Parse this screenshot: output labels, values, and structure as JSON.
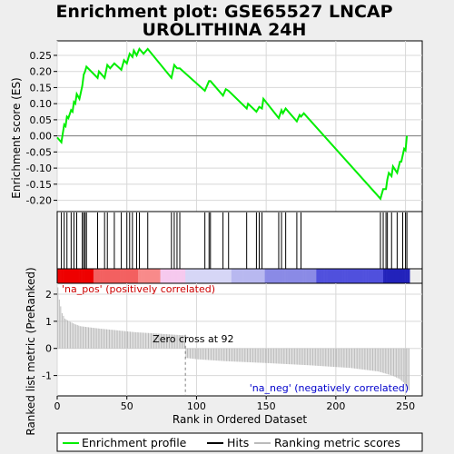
{
  "chart_data": {
    "type": "line",
    "title_lines": [
      "Enrichment plot: GSE65527 LNCAP",
      "UROLITHINA 24H"
    ],
    "ylabel_top": "Enrichment score (ES)",
    "ylabel_bottom": "Ranked list metric (PreRanked)",
    "xlabel": "Rank in Ordered Dataset",
    "es_ylim": [
      -0.235,
      0.295
    ],
    "es_yticks": [
      0.25,
      0.2,
      0.15,
      0.1,
      0.05,
      0.0,
      -0.05,
      -0.1,
      -0.15,
      -0.2
    ],
    "metric_ylim": [
      -1.75,
      2.4
    ],
    "metric_yticks": [
      2,
      1,
      0,
      -1
    ],
    "xlim": [
      0,
      262
    ],
    "xticks": [
      0,
      50,
      100,
      150,
      200,
      250
    ],
    "n_genes": 253,
    "zero_cross_rank": 92,
    "zero_cross_label": "Zero cross at 92",
    "pos_label": "'na_pos' (positively correlated)",
    "neg_label": "'na_neg' (negatively correlated)",
    "series": [
      {
        "name": "Enrichment profile",
        "color": "#00ee00",
        "x": [
          0,
          3,
          5,
          6,
          7,
          8,
          10,
          11,
          12,
          13,
          14,
          16,
          18,
          19,
          20,
          21,
          29,
          30,
          34,
          36,
          38,
          41,
          46,
          48,
          50,
          52,
          54,
          55,
          57,
          59,
          62,
          65,
          82,
          84,
          86,
          88,
          106,
          109,
          110,
          119,
          121,
          123,
          136,
          137,
          143,
          145,
          147,
          148,
          159,
          161,
          162,
          164,
          172,
          174,
          175,
          177,
          232,
          234,
          236,
          237,
          238,
          240,
          241,
          244,
          246,
          247,
          249,
          250,
          251
        ],
        "y": [
          -0.005,
          -0.02,
          0.035,
          0.03,
          0.06,
          0.055,
          0.08,
          0.075,
          0.105,
          0.1,
          0.13,
          0.115,
          0.155,
          0.19,
          0.2,
          0.215,
          0.18,
          0.2,
          0.18,
          0.22,
          0.21,
          0.225,
          0.205,
          0.235,
          0.225,
          0.255,
          0.245,
          0.265,
          0.25,
          0.27,
          0.255,
          0.27,
          0.18,
          0.22,
          0.21,
          0.21,
          0.14,
          0.17,
          0.17,
          0.125,
          0.145,
          0.14,
          0.085,
          0.1,
          0.075,
          0.09,
          0.085,
          0.115,
          0.055,
          0.08,
          0.07,
          0.085,
          0.045,
          0.065,
          0.06,
          0.07,
          -0.195,
          -0.165,
          -0.165,
          -0.135,
          -0.115,
          -0.125,
          -0.095,
          -0.115,
          -0.08,
          -0.08,
          -0.04,
          -0.045,
          0.0
        ]
      },
      {
        "name": "Hits",
        "color": "#000000",
        "x": [
          0,
          3,
          5,
          7,
          10,
          12,
          14,
          18,
          19,
          20,
          21,
          29,
          34,
          36,
          41,
          46,
          50,
          52,
          54,
          57,
          59,
          65,
          82,
          84,
          86,
          88,
          106,
          109,
          110,
          119,
          123,
          136,
          143,
          145,
          147,
          159,
          161,
          164,
          172,
          175,
          232,
          234,
          236,
          237,
          240,
          244,
          248,
          250,
          251
        ]
      },
      {
        "name": "Ranking metric scores",
        "color": "#bbbbbb",
        "x": [
          0,
          1,
          2,
          3,
          5,
          8,
          12,
          16,
          22,
          30,
          40,
          55,
          70,
          85,
          91,
          92,
          100,
          120,
          150,
          180,
          210,
          230,
          240,
          245,
          248,
          250,
          252
        ],
        "y": [
          2.25,
          1.8,
          1.55,
          1.3,
          1.1,
          1.0,
          0.9,
          0.82,
          0.78,
          0.73,
          0.68,
          0.6,
          0.55,
          0.5,
          0.48,
          -0.35,
          -0.4,
          -0.47,
          -0.54,
          -0.62,
          -0.72,
          -0.85,
          -1.0,
          -1.12,
          -1.25,
          -1.4,
          -1.55
        ]
      }
    ],
    "colorbar_colors": [
      "#ee0000",
      "#f88a8a",
      "#f6c9ee",
      "#d6d6f6",
      "#8a8ae6",
      "#5050dd",
      "#2222bb"
    ]
  }
}
